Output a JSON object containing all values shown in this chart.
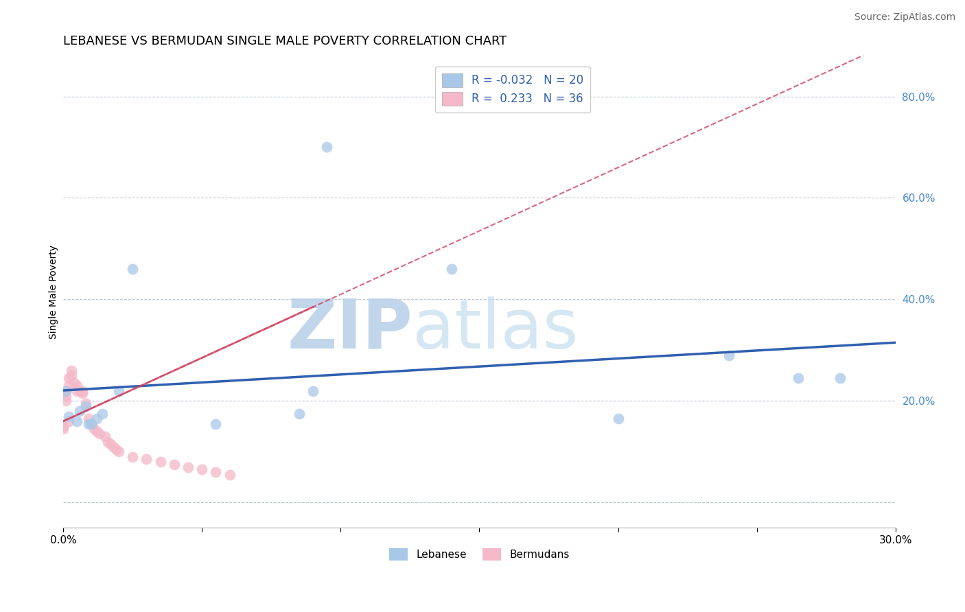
{
  "title": "LEBANESE VS BERMUDAN SINGLE MALE POVERTY CORRELATION CHART",
  "source": "Source: ZipAtlas.com",
  "ylabel": "Single Male Poverty",
  "xlim": [
    0.0,
    0.3
  ],
  "ylim": [
    -0.05,
    0.88
  ],
  "xticks": [
    0.0,
    0.05,
    0.1,
    0.15,
    0.2,
    0.25,
    0.3
  ],
  "yticks": [
    0.0,
    0.2,
    0.4,
    0.6,
    0.8
  ],
  "watermark_zip": "ZIP",
  "watermark_atlas": "atlas",
  "watermark_color": "#c8dff0",
  "blue_color": "#a8c8e8",
  "pink_color": "#f4b8c8",
  "blue_line_color": "#3060b0",
  "pink_line_color": "#d04060",
  "lebanese_x": [
    0.001,
    0.002,
    0.005,
    0.006,
    0.008,
    0.009,
    0.01,
    0.012,
    0.014,
    0.02,
    0.025,
    0.055,
    0.085,
    0.09,
    0.095,
    0.14,
    0.2,
    0.24,
    0.265,
    0.28
  ],
  "lebanese_y": [
    0.22,
    0.17,
    0.16,
    0.18,
    0.19,
    0.155,
    0.155,
    0.165,
    0.175,
    0.22,
    0.46,
    0.155,
    0.175,
    0.22,
    0.7,
    0.46,
    0.165,
    0.29,
    0.245,
    0.245
  ],
  "bermudan_x": [
    0.0,
    0.0,
    0.001,
    0.001,
    0.001,
    0.002,
    0.002,
    0.002,
    0.003,
    0.003,
    0.004,
    0.005,
    0.005,
    0.006,
    0.007,
    0.007,
    0.008,
    0.009,
    0.01,
    0.011,
    0.012,
    0.013,
    0.015,
    0.016,
    0.017,
    0.018,
    0.019,
    0.02,
    0.025,
    0.03,
    0.035,
    0.04,
    0.045,
    0.05,
    0.055,
    0.06
  ],
  "bermudan_y": [
    0.15,
    0.145,
    0.22,
    0.21,
    0.2,
    0.245,
    0.23,
    0.16,
    0.26,
    0.25,
    0.235,
    0.23,
    0.22,
    0.22,
    0.22,
    0.215,
    0.195,
    0.165,
    0.155,
    0.145,
    0.14,
    0.135,
    0.13,
    0.12,
    0.115,
    0.11,
    0.105,
    0.1,
    0.09,
    0.085,
    0.08,
    0.075,
    0.07,
    0.065,
    0.06,
    0.055
  ],
  "title_fontsize": 13,
  "axis_label_fontsize": 10,
  "tick_fontsize": 11,
  "source_fontsize": 10
}
